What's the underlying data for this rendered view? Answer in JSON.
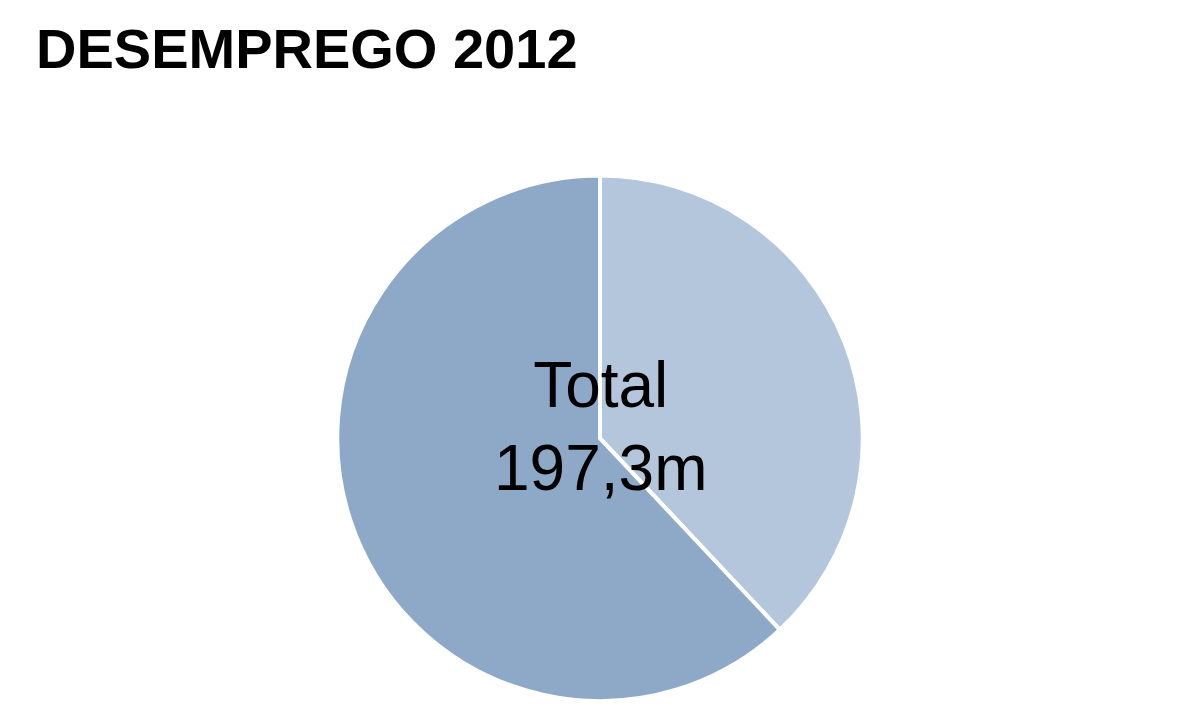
{
  "chart_data": {
    "type": "pie",
    "title": "DESEMPREGO 2012",
    "categories": [
      null,
      null
    ],
    "values": [
      38,
      62
    ],
    "colors": [
      "#b4c6dc",
      "#8ea9c8"
    ],
    "annotations": [
      "Total\n197,3m"
    ],
    "legend": false
  }
}
